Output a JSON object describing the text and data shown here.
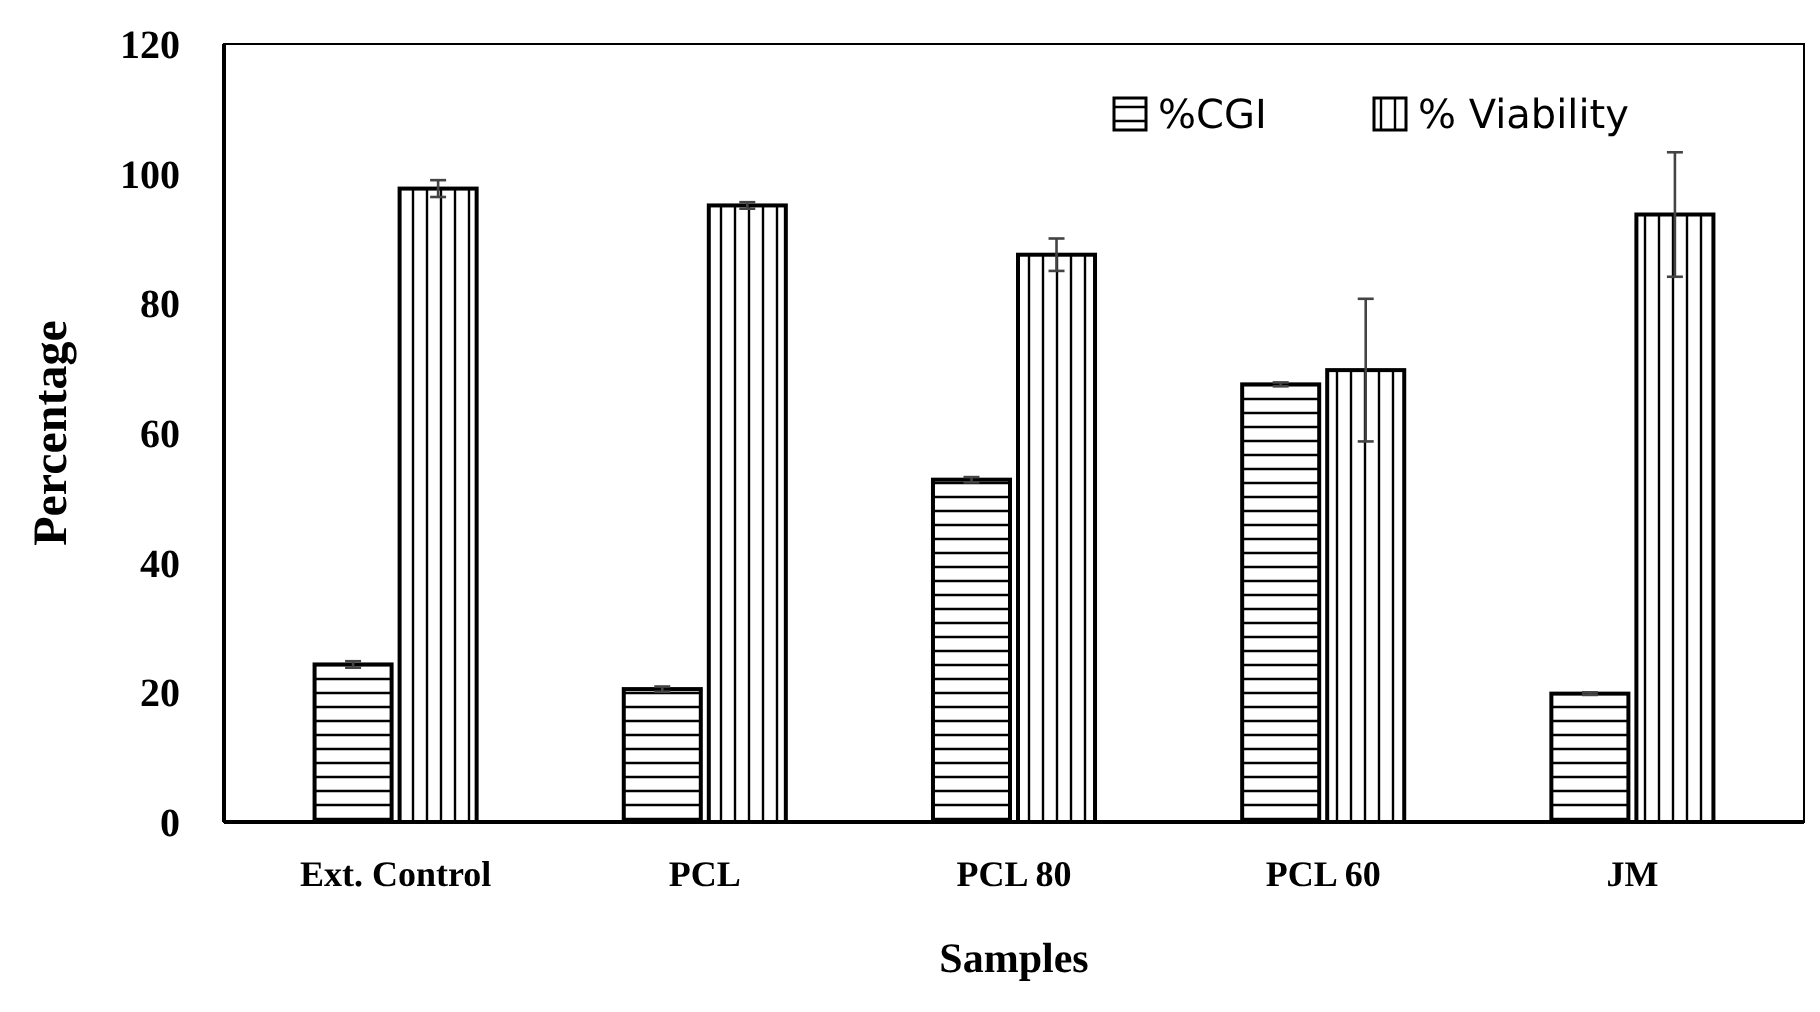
{
  "chart_data": {
    "type": "bar",
    "xlabel": "Samples",
    "ylabel": "Percentage",
    "categories": [
      "Ext. Control",
      "PCL",
      "PCL 80",
      "PCL 60",
      "JM"
    ],
    "series": [
      {
        "name": "%CGI",
        "color": "#000000",
        "values": [
          24.3,
          20.5,
          52.8,
          67.5,
          19.8
        ],
        "errors": [
          0.5,
          0.4,
          0.4,
          0.3,
          0.2
        ]
      },
      {
        "name": "% Viability",
        "color": "#000000",
        "values": [
          97.7,
          95.1,
          87.5,
          69.7,
          93.7
        ],
        "errors": [
          1.3,
          0.5,
          2.5,
          11,
          9.6
        ]
      }
    ],
    "ylim": [
      0,
      120
    ],
    "yticks": [
      0,
      20,
      40,
      60,
      80,
      100,
      120
    ],
    "grid": false,
    "legend": "top right"
  }
}
